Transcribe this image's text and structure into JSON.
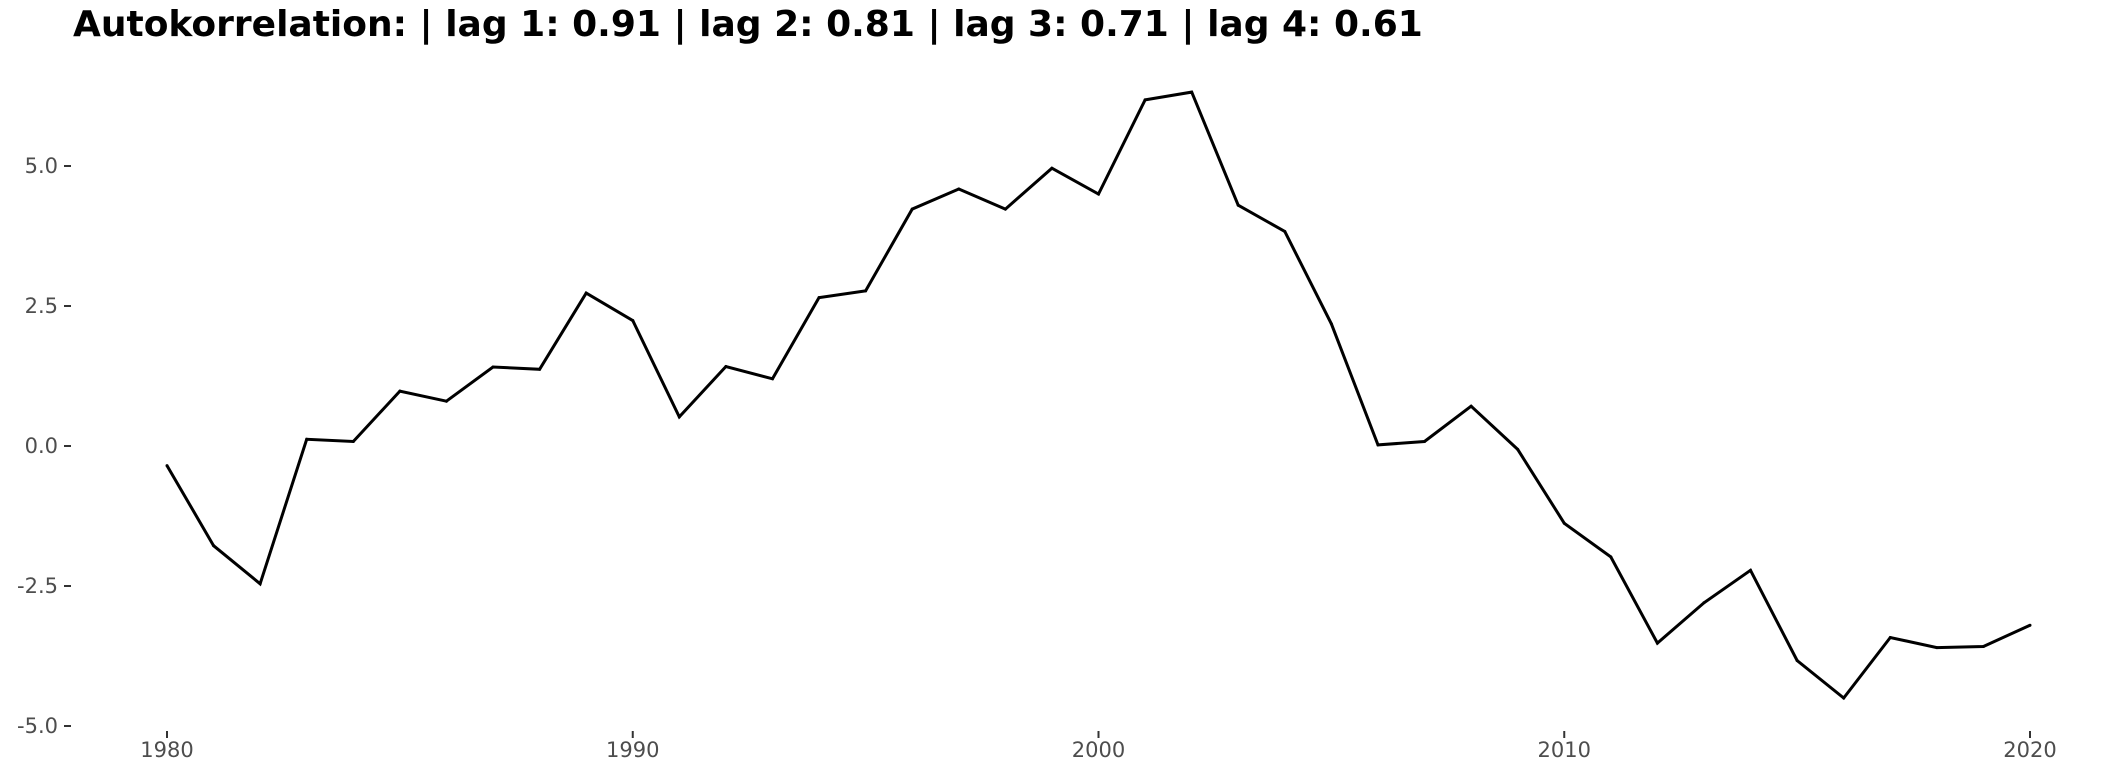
{
  "chart_data": {
    "type": "line",
    "title": "Autokorrelation: | lag 1: 0.91 | lag 2: 0.81 | lag 3: 0.71 | lag 4: 0.61",
    "xlabel": "",
    "ylabel": "",
    "xlim": [
      1978,
      2021
    ],
    "ylim": [
      -5.0,
      6.5
    ],
    "x_ticks": [
      1980,
      1990,
      2000,
      2010,
      2020
    ],
    "x_tick_labels": [
      "1980",
      "1990",
      "2000",
      "2010",
      "2020"
    ],
    "y_ticks": [
      5.0,
      2.5,
      0.0,
      -2.5,
      -5.0
    ],
    "y_tick_labels": [
      "5.0",
      "2.5",
      "0.0",
      "-2.5",
      "-5.0"
    ],
    "grid": false,
    "line_color": "#000000",
    "series": [
      {
        "x": [
          1980,
          1981,
          1982,
          1983,
          1984,
          1985,
          1986,
          1987,
          1988,
          1989,
          1990,
          1991,
          1992,
          1993,
          1994,
          1995,
          1996,
          1997,
          1998,
          1999,
          2000,
          2001,
          2002,
          2003,
          2004,
          2005,
          2006,
          2007,
          2008,
          2009,
          2010,
          2011,
          2012,
          2013,
          2014,
          2015,
          2016,
          2017,
          2018,
          2019,
          2020
        ],
        "values": [
          -0.35,
          -1.78,
          -2.46,
          0.12,
          0.08,
          0.98,
          0.8,
          1.41,
          1.37,
          2.73,
          2.24,
          0.52,
          1.42,
          1.2,
          2.65,
          2.77,
          4.23,
          4.59,
          4.23,
          4.96,
          4.5,
          6.18,
          6.32,
          4.3,
          3.83,
          2.18,
          0.02,
          0.08,
          0.71,
          -0.06,
          -1.38,
          -1.98,
          -3.52,
          -2.8,
          -2.22,
          -3.83,
          -4.5,
          -3.42,
          -3.6,
          -3.58,
          -3.2
        ]
      }
    ]
  }
}
